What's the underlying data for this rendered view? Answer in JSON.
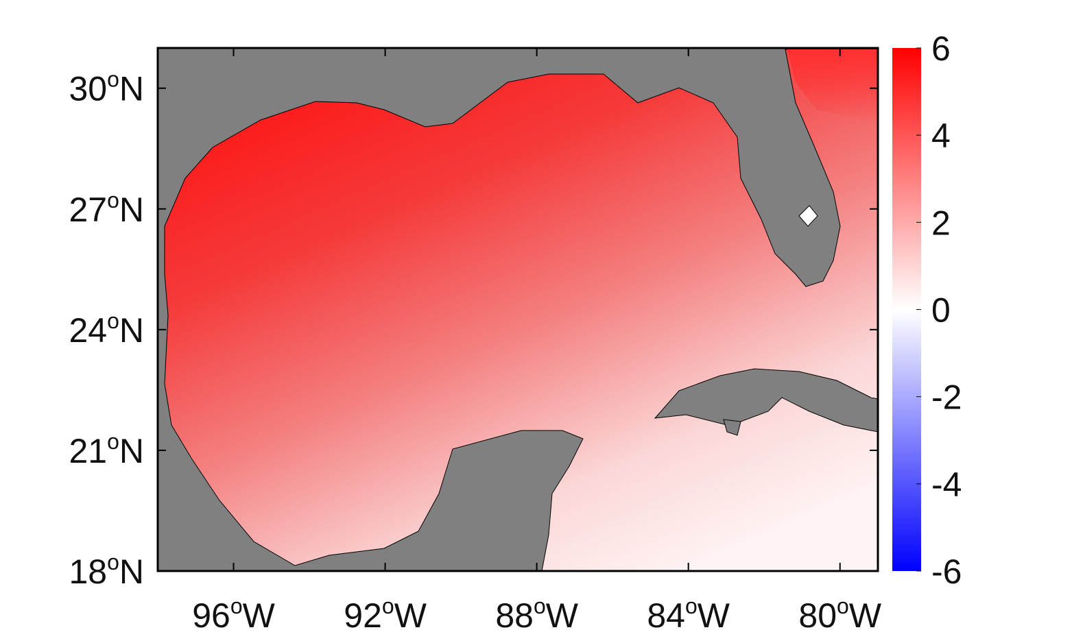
{
  "map": {
    "xaxis": {
      "lim": [
        -98,
        -79
      ],
      "ticks": [
        {
          "value": -96,
          "label": "96",
          "degree": "o",
          "hemisphere": "W"
        },
        {
          "value": -92,
          "label": "92",
          "degree": "o",
          "hemisphere": "W"
        },
        {
          "value": -88,
          "label": "88",
          "degree": "o",
          "hemisphere": "W"
        },
        {
          "value": -84,
          "label": "84",
          "degree": "o",
          "hemisphere": "W"
        },
        {
          "value": -80,
          "label": "80",
          "degree": "o",
          "hemisphere": "W"
        }
      ]
    },
    "yaxis": {
      "lim": [
        18,
        31
      ],
      "ticks": [
        {
          "value": 18,
          "label": "18",
          "degree": "o",
          "hemisphere": "N"
        },
        {
          "value": 21,
          "label": "21",
          "degree": "o",
          "hemisphere": "N"
        },
        {
          "value": 24,
          "label": "24",
          "degree": "o",
          "hemisphere": "N"
        },
        {
          "value": 27,
          "label": "27",
          "degree": "o",
          "hemisphere": "N"
        },
        {
          "value": 30,
          "label": "30",
          "degree": "o",
          "hemisphere": "N"
        }
      ]
    },
    "colorbar": {
      "lim": [
        -6,
        6
      ],
      "ticks": [
        -6,
        -4,
        -2,
        0,
        2,
        4,
        6
      ],
      "colors": [
        "#0000ff",
        "#ffffff",
        "#ff0000"
      ]
    },
    "land_color": "#808080"
  }
}
